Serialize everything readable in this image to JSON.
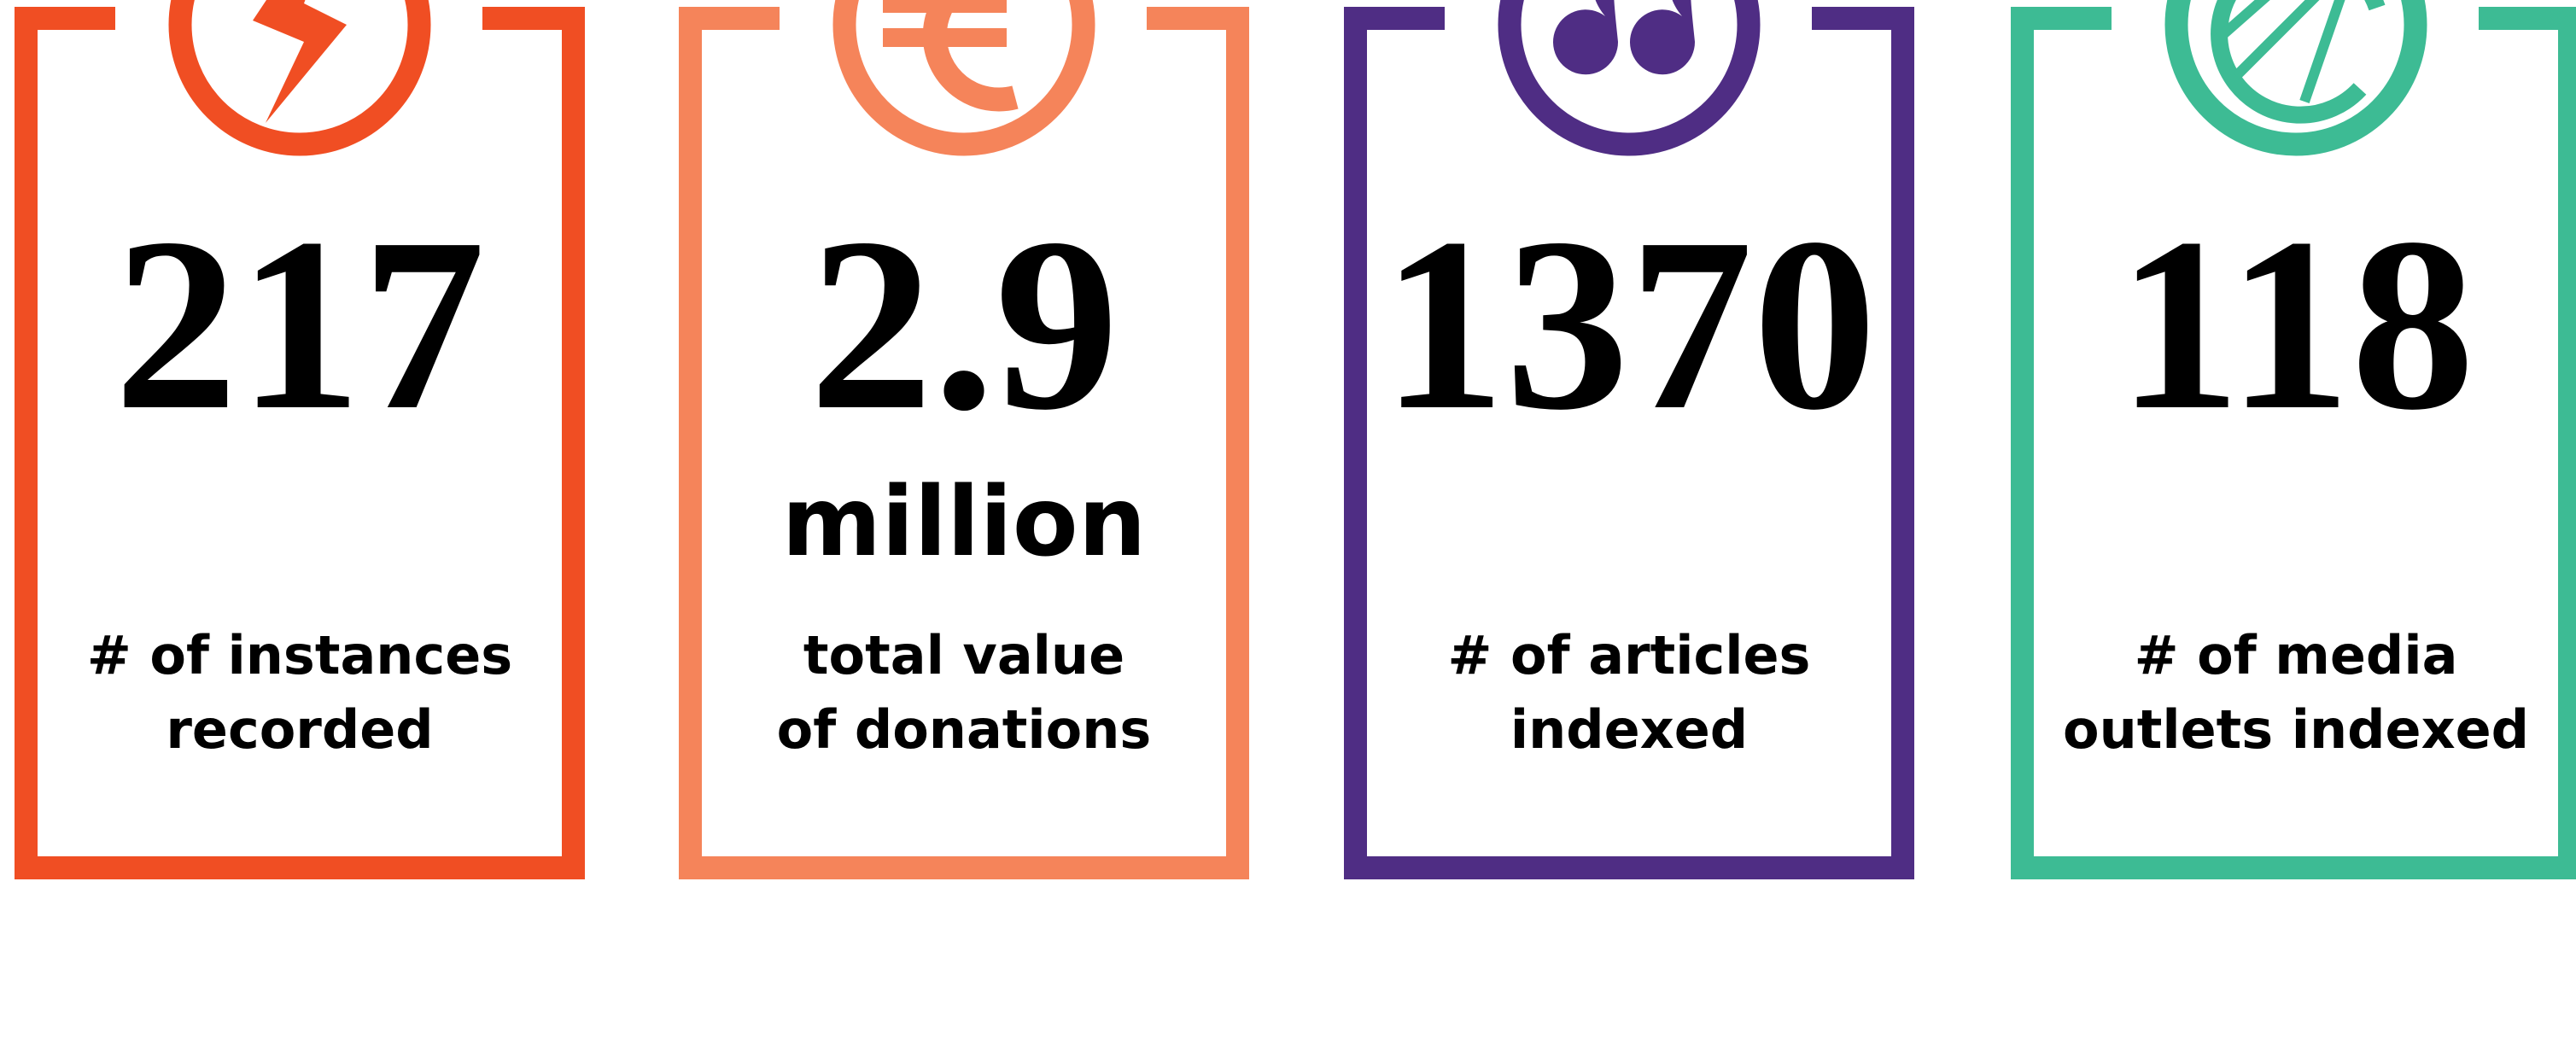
{
  "cards": [
    {
      "value": "217",
      "label_lines": [
        "# of instances",
        "recorded"
      ],
      "color": "#f04e23"
    },
    {
      "value": "2.9",
      "unit": "million",
      "label_lines": [
        "total value",
        "of donations"
      ],
      "color": "#f5845a"
    },
    {
      "value": "1370",
      "label_lines": [
        "# of articles",
        "indexed"
      ],
      "color": "#4f2d84"
    },
    {
      "value": "118",
      "label_lines": [
        "# of media",
        "outlets indexed"
      ],
      "color": "#3dbb94"
    }
  ]
}
